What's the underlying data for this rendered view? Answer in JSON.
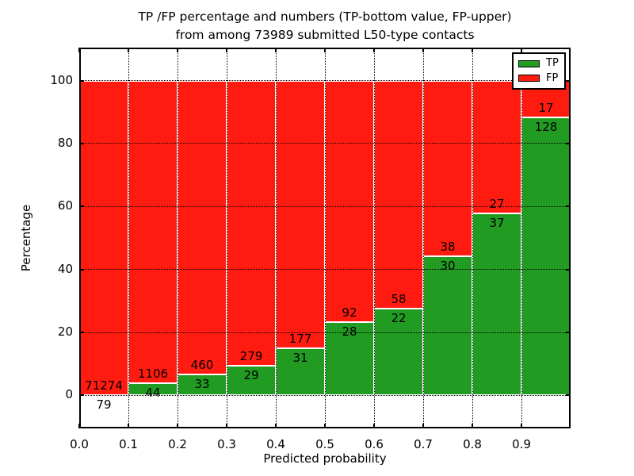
{
  "title": {
    "line1": "TP /FP percentage and numbers (TP-bottom value, FP-upper)",
    "line2": "from among 73989 submitted L50-type contacts"
  },
  "chart_data": {
    "type": "bar",
    "stacked_to_100_percent": true,
    "title": "TP /FP percentage and numbers (TP-bottom value, FP-upper) from among 73989 submitted L50-type contacts",
    "xlabel": "Predicted probability",
    "ylabel": "Percentage",
    "total_contacts": 73989,
    "bin_edges": [
      0.0,
      0.1,
      0.2,
      0.3,
      0.4,
      0.5,
      0.6,
      0.7,
      0.8,
      0.9,
      1.0
    ],
    "categories": [
      "0.0-0.1",
      "0.1-0.2",
      "0.2-0.3",
      "0.3-0.4",
      "0.4-0.5",
      "0.5-0.6",
      "0.6-0.7",
      "0.7-0.8",
      "0.8-0.9",
      "0.9-1.0"
    ],
    "series": [
      {
        "name": "TP",
        "color": "#229b22",
        "counts": [
          79,
          44,
          33,
          29,
          31,
          28,
          22,
          30,
          37,
          128
        ]
      },
      {
        "name": "FP",
        "color": "#ff1b10",
        "counts": [
          71274,
          1106,
          460,
          279,
          177,
          92,
          58,
          38,
          27,
          17
        ]
      }
    ],
    "x_tick_labels": [
      "0.0",
      "0.1",
      "0.2",
      "0.3",
      "0.4",
      "0.5",
      "0.6",
      "0.7",
      "0.8",
      "0.9"
    ],
    "y_tick_labels": [
      "0",
      "20",
      "40",
      "60",
      "80",
      "100"
    ],
    "y_ticks": [
      0,
      20,
      40,
      60,
      80,
      100
    ],
    "xlim": [
      0.0,
      1.0
    ],
    "ylim": [
      -10.5,
      110.5
    ],
    "grid": "dotted both axes",
    "legend": {
      "position": "upper right",
      "entries": [
        {
          "label": "TP",
          "color": "#229b22"
        },
        {
          "label": "FP",
          "color": "#ff1b10"
        }
      ]
    }
  }
}
